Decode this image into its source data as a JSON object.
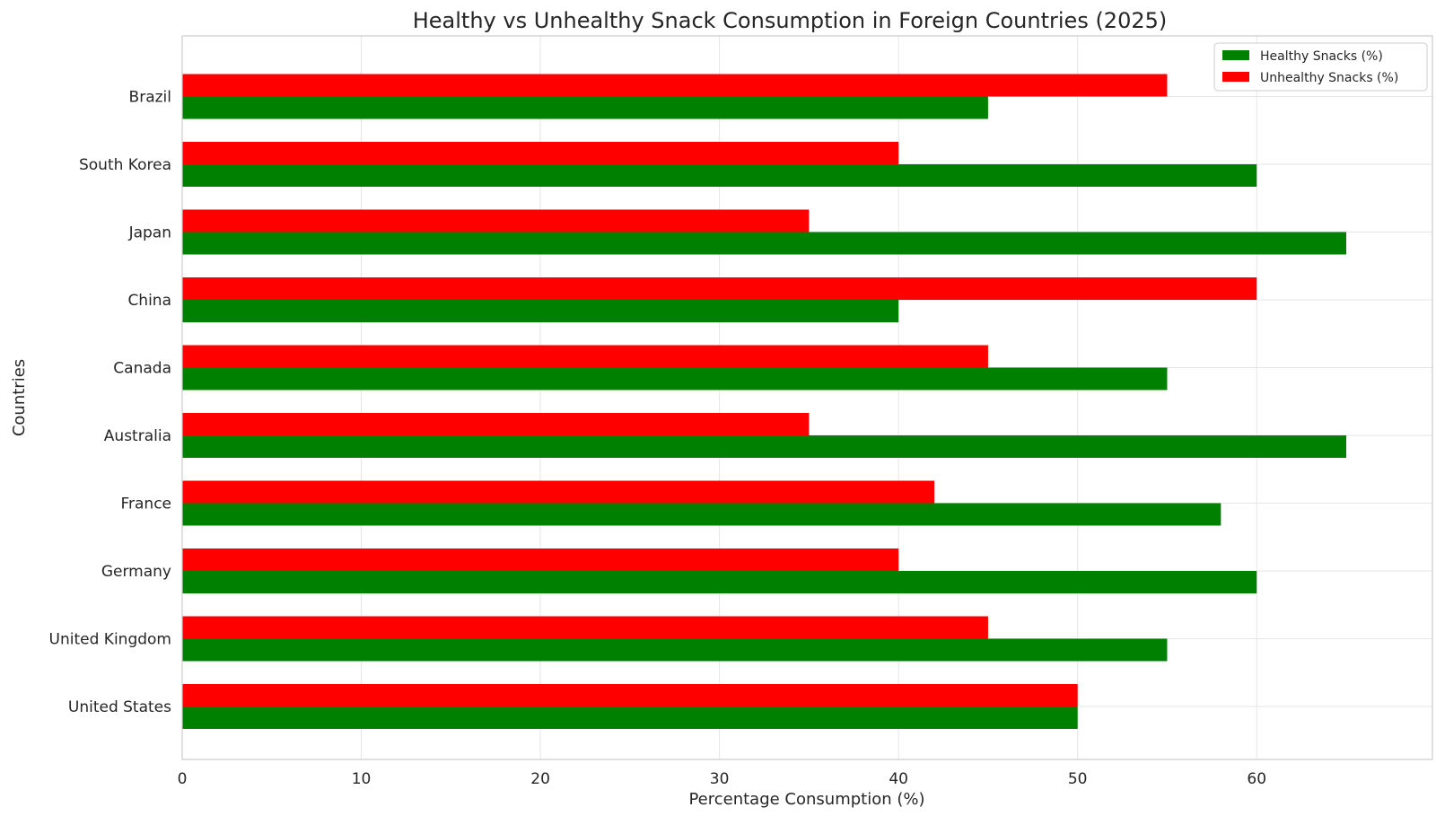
{
  "chart_data": {
    "type": "bar",
    "orientation": "horizontal",
    "title": "Healthy vs Unhealthy Snack Consumption in Foreign Countries (2025)",
    "xlabel": "Percentage Consumption (%)",
    "ylabel": "Countries",
    "categories": [
      "United States",
      "United Kingdom",
      "Germany",
      "France",
      "Australia",
      "Canada",
      "China",
      "Japan",
      "South Korea",
      "Brazil"
    ],
    "series": [
      {
        "name": "Healthy Snacks (%)",
        "color": "#008000",
        "values": [
          50,
          55,
          60,
          58,
          65,
          55,
          40,
          65,
          60,
          45
        ]
      },
      {
        "name": "Unhealthy Snacks (%)",
        "color": "#ff0000",
        "values": [
          50,
          45,
          40,
          42,
          35,
          45,
          60,
          35,
          40,
          55
        ]
      }
    ],
    "xlim": [
      0,
      68.25
    ],
    "xticks": [
      0,
      10,
      20,
      30,
      40,
      50,
      60
    ],
    "grid": true,
    "legend_position": "top-right"
  }
}
